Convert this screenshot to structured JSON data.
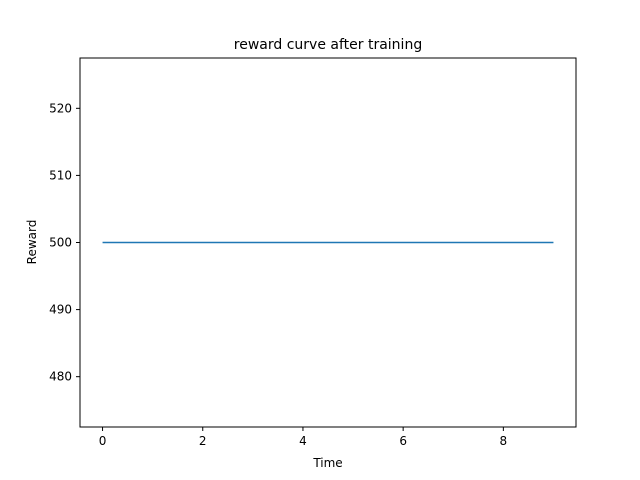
{
  "chart_data": {
    "type": "line",
    "title": "reward curve after training",
    "xlabel": "Time",
    "ylabel": "Reward",
    "xlim": [
      -0.45,
      9.45
    ],
    "ylim": [
      472.5,
      527.5
    ],
    "xticks": [
      0,
      2,
      4,
      6,
      8
    ],
    "yticks": [
      480,
      490,
      500,
      510,
      520
    ],
    "grid": false,
    "series": [
      {
        "color": "#1f77b4",
        "x": [
          0,
          1,
          2,
          3,
          4,
          5,
          6,
          7,
          8,
          9
        ],
        "y": [
          500,
          500,
          500,
          500,
          500,
          500,
          500,
          500,
          500,
          500
        ]
      }
    ]
  }
}
